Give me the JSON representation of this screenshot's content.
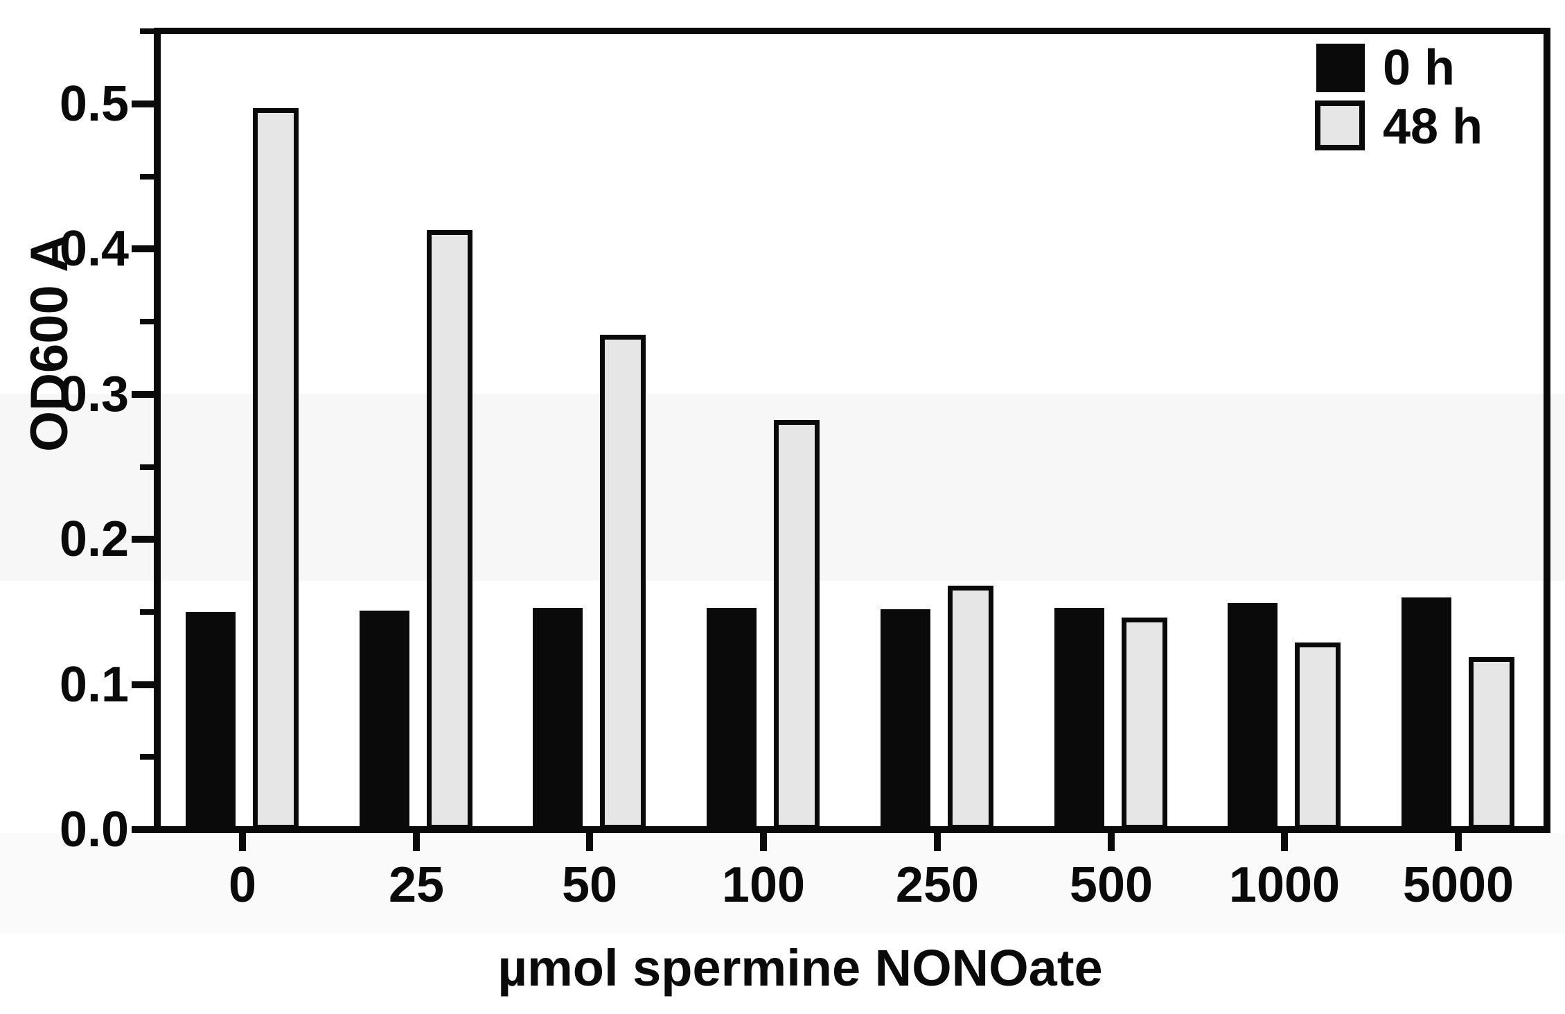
{
  "chart_data": {
    "type": "bar",
    "title": "",
    "xlabel": "µmol spermine NONOate",
    "ylabel": "OD600 A",
    "categories": [
      "0",
      "25",
      "50",
      "100",
      "250",
      "500",
      "1000",
      "5000"
    ],
    "series": [
      {
        "name": "0 h",
        "color": "#0a0a0a",
        "values": [
          0.15,
          0.151,
          0.153,
          0.153,
          0.152,
          0.153,
          0.156,
          0.16
        ]
      },
      {
        "name": "48 h",
        "color": "#e6e6e6",
        "border_color": "#0a0a0a",
        "values": [
          0.497,
          0.413,
          0.341,
          0.282,
          0.168,
          0.146,
          0.129,
          0.119
        ]
      }
    ],
    "ylim": [
      0.0,
      0.553
    ],
    "yticks_major": [
      0.0,
      0.1,
      0.2,
      0.3,
      0.4,
      0.5
    ],
    "ytick_labels": [
      "0.0",
      "0.1",
      "0.2",
      "0.3",
      "0.4",
      "0.5"
    ],
    "yticks_minor": [
      0.05,
      0.15,
      0.25,
      0.35,
      0.45,
      0.55
    ],
    "xlabel_unit": "µmol",
    "legend_position": "top-right",
    "grid": false,
    "axis_color": "#0a0a0a",
    "background_color": "#ffffff"
  }
}
